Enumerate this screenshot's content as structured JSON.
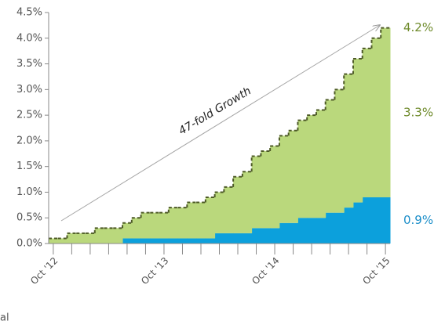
{
  "chart_data": {
    "type": "stacked-step-area",
    "categories": [
      "Oct '12",
      null,
      null,
      null,
      null,
      null,
      null,
      null,
      null,
      null,
      null,
      null,
      "Oct '13",
      null,
      null,
      null,
      null,
      null,
      null,
      null,
      null,
      null,
      null,
      null,
      "Oct '14",
      null,
      null,
      null,
      null,
      null,
      null,
      null,
      null,
      null,
      null,
      null,
      "Oct '15"
    ],
    "series": [
      {
        "name": null,
        "color": "#0ca0dc",
        "label_color": "#1b8ec9",
        "values": [
          0,
          0,
          0,
          0,
          0,
          0,
          0,
          0,
          0.1,
          0.1,
          0.1,
          0.1,
          0.1,
          0.1,
          0.1,
          0.1,
          0.1,
          0.1,
          0.2,
          0.2,
          0.2,
          0.2,
          0.3,
          0.3,
          0.3,
          0.4,
          0.4,
          0.5,
          0.5,
          0.5,
          0.6,
          0.6,
          0.7,
          0.8,
          0.9,
          0.9,
          0.9
        ],
        "value_labels": [
          null,
          null,
          null,
          null,
          null,
          null,
          null,
          null,
          null,
          null,
          null,
          null,
          null,
          null,
          null,
          null,
          null,
          null,
          null,
          null,
          null,
          null,
          null,
          null,
          null,
          null,
          null,
          null,
          null,
          null,
          null,
          null,
          null,
          null,
          null,
          null,
          "0.9%"
        ]
      },
      {
        "name": null,
        "color": "#bad87c",
        "label_color": "#6e8a2a",
        "values": [
          0.1,
          0.1,
          0.2,
          0.2,
          0.2,
          0.3,
          0.3,
          0.3,
          0.3,
          0.4,
          0.5,
          0.5,
          0.5,
          0.6,
          0.6,
          0.7,
          0.7,
          0.8,
          0.8,
          0.9,
          1.1,
          1.2,
          1.4,
          1.5,
          1.6,
          1.7,
          1.8,
          1.9,
          2.0,
          2.1,
          2.2,
          2.4,
          2.6,
          2.8,
          2.9,
          3.1,
          3.3
        ],
        "value_labels": [
          null,
          null,
          null,
          null,
          null,
          null,
          null,
          null,
          null,
          null,
          null,
          null,
          null,
          null,
          null,
          null,
          null,
          null,
          null,
          null,
          null,
          null,
          null,
          null,
          null,
          null,
          null,
          null,
          null,
          null,
          null,
          null,
          null,
          null,
          null,
          null,
          "3.3%"
        ]
      }
    ],
    "total_line_color": "#4d5a26",
    "total_label": "4.2%",
    "annotation": "47-fold Growth",
    "footer_fragment": "al",
    "ylim": [
      0,
      4.5
    ],
    "yticks": [
      {
        "value": 0,
        "label": "0.0%"
      },
      {
        "value": 0.5,
        "label": "0.5%"
      },
      {
        "value": 1,
        "label": "1.0%"
      },
      {
        "value": 1.5,
        "label": "1.5%"
      },
      {
        "value": 2,
        "label": "2.0%"
      },
      {
        "value": 2.5,
        "label": "2.5%"
      },
      {
        "value": 3,
        "label": "3.0%"
      },
      {
        "value": 3.5,
        "label": "3.5%"
      },
      {
        "value": 4,
        "label": "4.0%"
      },
      {
        "value": 4.5,
        "label": "4.5%"
      }
    ],
    "grid": false
  }
}
